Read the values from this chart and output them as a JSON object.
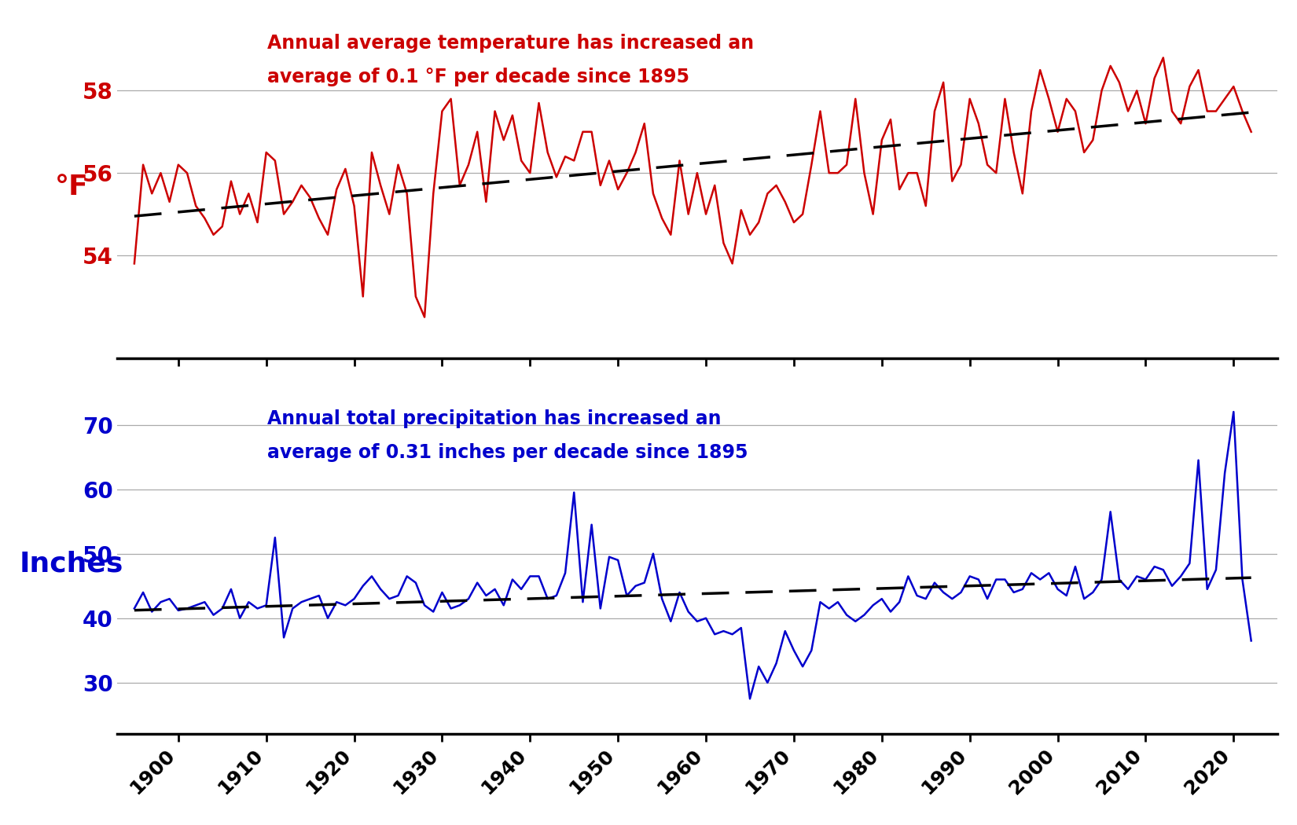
{
  "years": [
    1895,
    1896,
    1897,
    1898,
    1899,
    1900,
    1901,
    1902,
    1903,
    1904,
    1905,
    1906,
    1907,
    1908,
    1909,
    1910,
    1911,
    1912,
    1913,
    1914,
    1915,
    1916,
    1917,
    1918,
    1919,
    1920,
    1921,
    1922,
    1923,
    1924,
    1925,
    1926,
    1927,
    1928,
    1929,
    1930,
    1931,
    1932,
    1933,
    1934,
    1935,
    1936,
    1937,
    1938,
    1939,
    1940,
    1941,
    1942,
    1943,
    1944,
    1945,
    1946,
    1947,
    1948,
    1949,
    1950,
    1951,
    1952,
    1953,
    1954,
    1955,
    1956,
    1957,
    1958,
    1959,
    1960,
    1961,
    1962,
    1963,
    1964,
    1965,
    1966,
    1967,
    1968,
    1969,
    1970,
    1971,
    1972,
    1973,
    1974,
    1975,
    1976,
    1977,
    1978,
    1979,
    1980,
    1981,
    1982,
    1983,
    1984,
    1985,
    1986,
    1987,
    1988,
    1989,
    1990,
    1991,
    1992,
    1993,
    1994,
    1995,
    1996,
    1997,
    1998,
    1999,
    2000,
    2001,
    2002,
    2003,
    2004,
    2005,
    2006,
    2007,
    2008,
    2009,
    2010,
    2011,
    2012,
    2013,
    2014,
    2015,
    2016,
    2017,
    2018,
    2019,
    2020,
    2021,
    2022
  ],
  "temp": [
    53.8,
    56.2,
    55.5,
    56.0,
    55.3,
    56.2,
    56.0,
    55.2,
    54.9,
    54.5,
    54.7,
    55.8,
    55.0,
    55.5,
    54.8,
    56.5,
    56.3,
    55.0,
    55.3,
    55.7,
    55.4,
    54.9,
    54.5,
    55.6,
    56.1,
    55.2,
    53.0,
    56.5,
    55.7,
    55.0,
    56.2,
    55.5,
    53.0,
    52.5,
    55.5,
    57.5,
    57.8,
    55.7,
    56.2,
    57.0,
    55.3,
    57.5,
    56.8,
    57.4,
    56.3,
    56.0,
    57.7,
    56.5,
    55.9,
    56.4,
    56.3,
    57.0,
    57.0,
    55.7,
    56.3,
    55.6,
    56.0,
    56.5,
    57.2,
    55.5,
    54.9,
    54.5,
    56.3,
    55.0,
    56.0,
    55.0,
    55.7,
    54.3,
    53.8,
    55.1,
    54.5,
    54.8,
    55.5,
    55.7,
    55.3,
    54.8,
    55.0,
    56.2,
    57.5,
    56.0,
    56.0,
    56.2,
    57.8,
    56.0,
    55.0,
    56.8,
    57.3,
    55.6,
    56.0,
    56.0,
    55.2,
    57.5,
    58.2,
    55.8,
    56.2,
    57.8,
    57.2,
    56.2,
    56.0,
    57.8,
    56.5,
    55.5,
    57.5,
    58.5,
    57.8,
    57.0,
    57.8,
    57.5,
    56.5,
    56.8,
    58.0,
    58.6,
    58.2,
    57.5,
    58.0,
    57.2,
    58.3,
    58.8,
    57.5,
    57.2,
    58.1,
    58.5,
    57.5,
    57.5,
    57.8,
    58.1,
    57.5,
    57.0
  ],
  "precip": [
    41.5,
    44.0,
    41.0,
    42.5,
    43.0,
    41.2,
    41.5,
    42.0,
    42.5,
    40.5,
    41.5,
    44.5,
    40.0,
    42.5,
    41.5,
    42.0,
    52.5,
    37.0,
    41.5,
    42.5,
    43.0,
    43.5,
    40.0,
    42.5,
    42.0,
    43.0,
    45.0,
    46.5,
    44.5,
    43.0,
    43.5,
    46.5,
    45.5,
    42.0,
    41.0,
    44.0,
    41.5,
    42.0,
    43.0,
    45.5,
    43.5,
    44.5,
    42.0,
    46.0,
    44.5,
    46.5,
    46.5,
    43.0,
    43.5,
    47.0,
    59.5,
    42.5,
    54.5,
    41.5,
    49.5,
    49.0,
    43.5,
    45.0,
    45.5,
    50.0,
    43.0,
    39.5,
    44.0,
    41.0,
    39.5,
    40.0,
    37.5,
    38.0,
    37.5,
    38.5,
    27.5,
    32.5,
    30.0,
    33.0,
    38.0,
    35.0,
    32.5,
    35.0,
    42.5,
    41.5,
    42.5,
    40.5,
    39.5,
    40.5,
    42.0,
    43.0,
    41.0,
    42.5,
    46.5,
    43.5,
    43.0,
    45.5,
    44.0,
    43.0,
    44.0,
    46.5,
    46.0,
    43.0,
    46.0,
    46.0,
    44.0,
    44.5,
    47.0,
    46.0,
    47.0,
    44.5,
    43.5,
    48.0,
    43.0,
    44.0,
    46.0,
    56.5,
    46.0,
    44.5,
    46.5,
    46.0,
    48.0,
    47.5,
    45.0,
    46.5,
    48.5,
    64.5,
    44.5,
    47.5,
    62.5,
    72.0,
    46.0,
    36.5
  ],
  "temp_color": "#cc0000",
  "precip_color": "#0000cc",
  "trend_color": "black",
  "bg_color": "#ffffff",
  "grid_color": "#aaaaaa",
  "temp_ylabel": "°F",
  "precip_ylabel": "Inches",
  "temp_annotation": "Annual average temperature has increased an\naverage of 0.1 °F per decade since 1895",
  "precip_annotation": "Annual total precipitation has increased an\naverage of 0.31 inches per decade since 1895",
  "temp_yticks": [
    54,
    56,
    58
  ],
  "precip_yticks": [
    30,
    40,
    50,
    60,
    70
  ],
  "temp_ylim": [
    51.5,
    59.8
  ],
  "precip_ylim": [
    22.0,
    75.0
  ],
  "xmin": 1893,
  "xmax": 2025,
  "xticks": [
    1900,
    1910,
    1920,
    1930,
    1940,
    1950,
    1960,
    1970,
    1980,
    1990,
    2000,
    2010,
    2020
  ]
}
